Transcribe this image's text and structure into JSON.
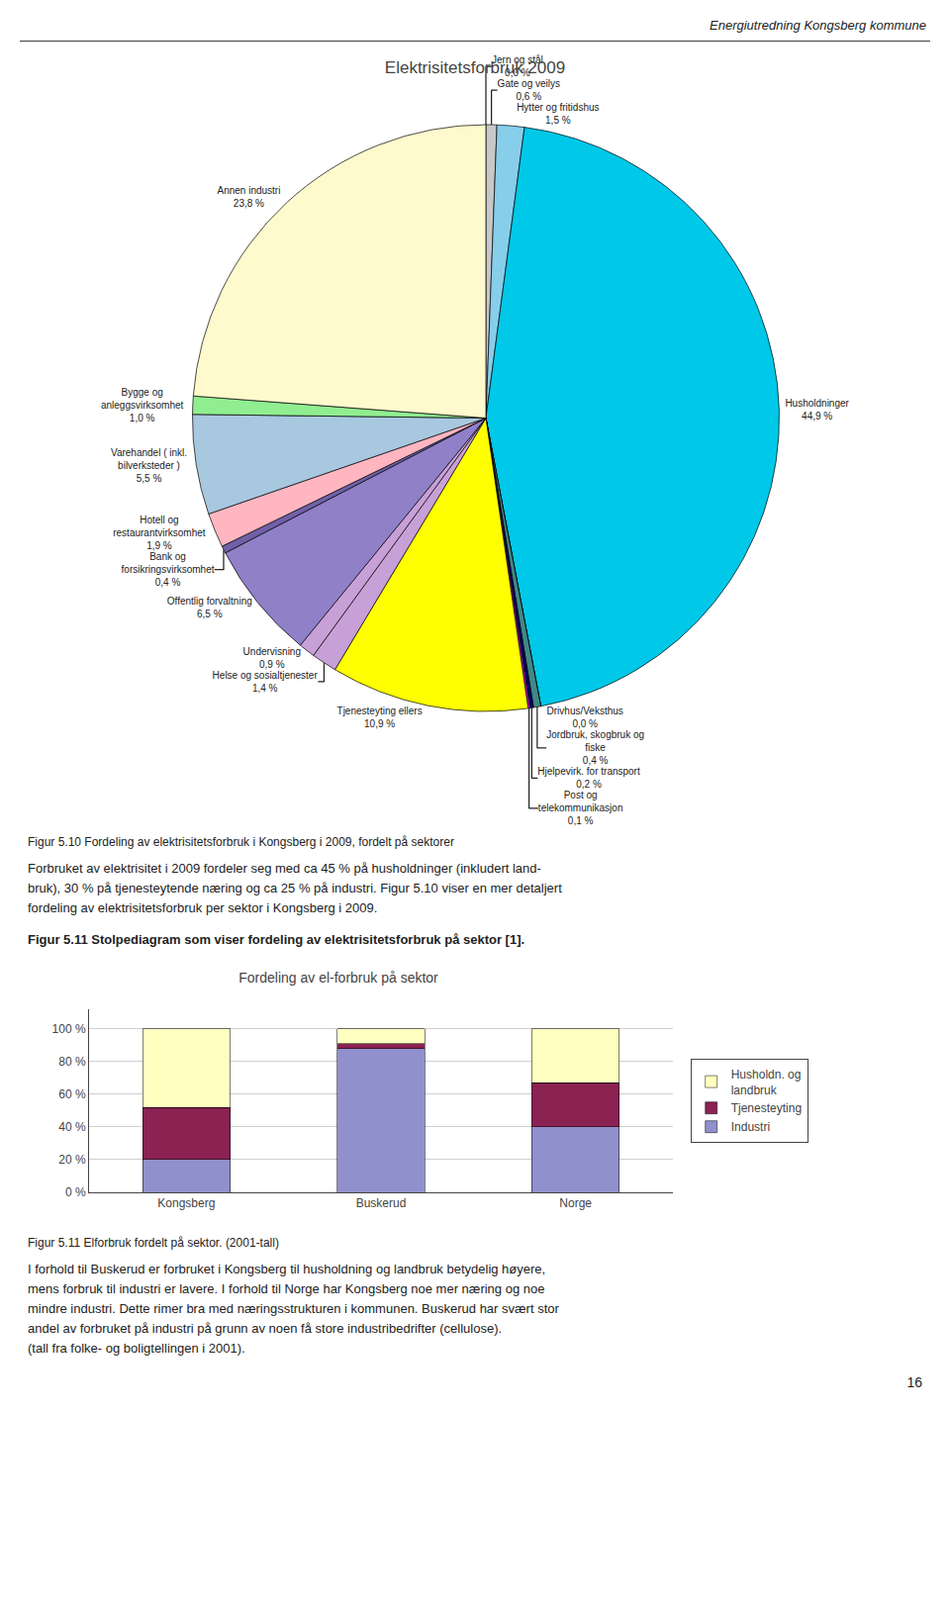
{
  "page_title": "Energiutredning Kongsberg kommune",
  "chart_data": [
    {
      "type": "pie",
      "title": "Elektrisitetsforbruk 2009",
      "values": [
        0.001,
        0.6,
        1.5,
        44.9,
        0.001,
        0.4,
        0.2,
        0.1,
        10.9,
        1.4,
        0.9,
        6.5,
        0.4,
        1.9,
        5.5,
        1.0,
        23.8
      ],
      "value_labels": [
        "Jern og stål\n0,0 %",
        "Gate og veilys\n0,6 %",
        "Hytter og fritidshus\n1,5 %",
        "Husholdninger\n44,9 %",
        "Drivhus/Veksthus\n0,0 %",
        "Jordbruk, skogbruk og\nfiske\n0,4 %",
        "Hjelpevirk. for transport\n0,2 %",
        "Post og\ntelekommunikasjon\n0,1 %",
        "Tjenesteyting ellers\n10,9 %",
        "Helse og sosialtjenester\n1,4 %",
        "Undervisning\n0,9 %",
        "Offentlig forvaltning\n6,5 %",
        "Bank og\nforsikringsvirksomhet\n0,4 %",
        "Hotell og\nrestaurantvirksomhet\n1,9 %",
        "Varehandel ( inkl.\nbilverksteder )\n5,5 %",
        "Bygge og\nanleggsvirksomhet\n1,0 %",
        "Annen industri\n23,8 %"
      ],
      "colors": [
        "#E8E8E8",
        "#C8C8C8",
        "#87CEEB",
        "#00C8E8",
        "#50A050",
        "#408888",
        "#000060",
        "#FF00FF",
        "#FFFF00",
        "#C8A0D8",
        "#C8A0D8",
        "#9080C8",
        "#7060A8",
        "#FFB6C1",
        "#A8C8E0",
        "#90EE90",
        "#FFFACD"
      ],
      "data_labels": true,
      "caption": "Figur 5.10 Fordeling av elektrisitetsforbruk i Kongsberg i 2009, fordelt på sektorer"
    },
    {
      "type": "bar",
      "stacked": true,
      "title": "Fordeling av el-forbruk på sektor",
      "categories": [
        "Kongsberg",
        "Buskerud",
        "Norge"
      ],
      "series": [
        {
          "name": "Industri",
          "color": "#9090CC",
          "values": [
            20,
            88,
            40
          ]
        },
        {
          "name": "Tjenesteyting",
          "color": "#8B2252",
          "values": [
            32,
            3,
            27
          ]
        },
        {
          "name": "Husholdn. og\nlandbruk",
          "color": "#FFFFC0",
          "values": [
            48,
            9,
            33
          ]
        }
      ],
      "ylim": [
        0,
        112
      ],
      "yticks": [
        {
          "value": 0,
          "label": "0 %"
        },
        {
          "value": 20,
          "label": "20 %"
        },
        {
          "value": 40,
          "label": "40 %"
        },
        {
          "value": 60,
          "label": "60 %"
        },
        {
          "value": 80,
          "label": "80 %"
        },
        {
          "value": 100,
          "label": "100 %"
        }
      ],
      "grid": true,
      "legend": "right",
      "caption": "Figur 5.11 Elforbruk fordelt på sektor. (2001-tall)"
    }
  ],
  "text_after_pie": [
    "Forbruket av elektrisitet i 2009 fordeler seg med ca 45 % på husholdninger (inkludert land-\nbruk), 30 % på tjenesteytende næring og ca 25 % på industri. Figur 5.10 viser en mer detaljert\nfordeling av elektrisitetsforbruk per sektor i Kongsberg i 2009.",
    "Figur 5.11 Stolpediagram som viser fordeling av elektrisitetsforbruk på sektor [1]."
  ],
  "text_after_bar": [
    "I forhold til Buskerud er forbruket i Kongsberg til husholdning og landbruk betydelig høyere,\nmens forbruk til industri er lavere. I forhold til Norge har Kongsberg noe mer næring og noe\nmindre industri. Dette rimer bra med næringsstrukturen i kommunen. Buskerud har svært stor\nandel av forbruket på industri på grunn av noen få store industribedrifter (cellulose).\n(tall fra folke- og boligtellingen i 2001)."
  ],
  "page_number": "16"
}
